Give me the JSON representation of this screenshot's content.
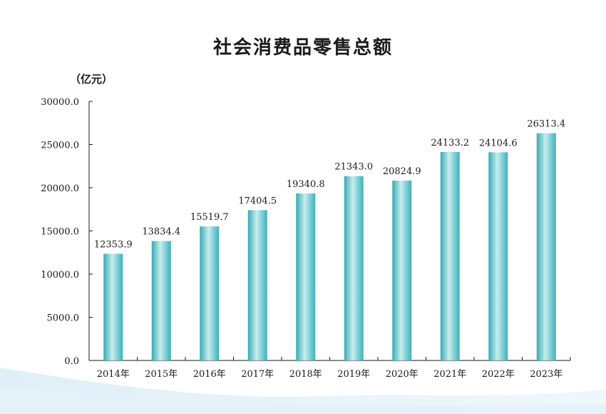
{
  "chart_data": {
    "type": "bar",
    "title": "社会消费品零售总额",
    "unit": "（亿元）",
    "categories": [
      "2014年",
      "2015年",
      "2016年",
      "2017年",
      "2018年",
      "2019年",
      "2020年",
      "2021年",
      "2022年",
      "2023年"
    ],
    "values": [
      12353.9,
      13834.4,
      15519.7,
      17404.5,
      19340.8,
      21343.0,
      20824.9,
      24133.2,
      24104.6,
      26313.4
    ],
    "value_labels": [
      "12353.9",
      "13834.4",
      "15519.7",
      "17404.5",
      "19340.8",
      "21343.0",
      "20824.9",
      "24133.2",
      "24104.6",
      "26313.4"
    ],
    "y_ticks": [
      0,
      5000,
      10000,
      15000,
      20000,
      25000,
      30000
    ],
    "y_tick_labels": [
      "0.0",
      "5000.0",
      "10000.0",
      "15000.0",
      "20000.0",
      "25000.0",
      "30000.0"
    ],
    "ylim": [
      0,
      30000
    ],
    "grid": false,
    "bar_color": "#4db8c0",
    "bar_highlight": "#c5eef0"
  }
}
